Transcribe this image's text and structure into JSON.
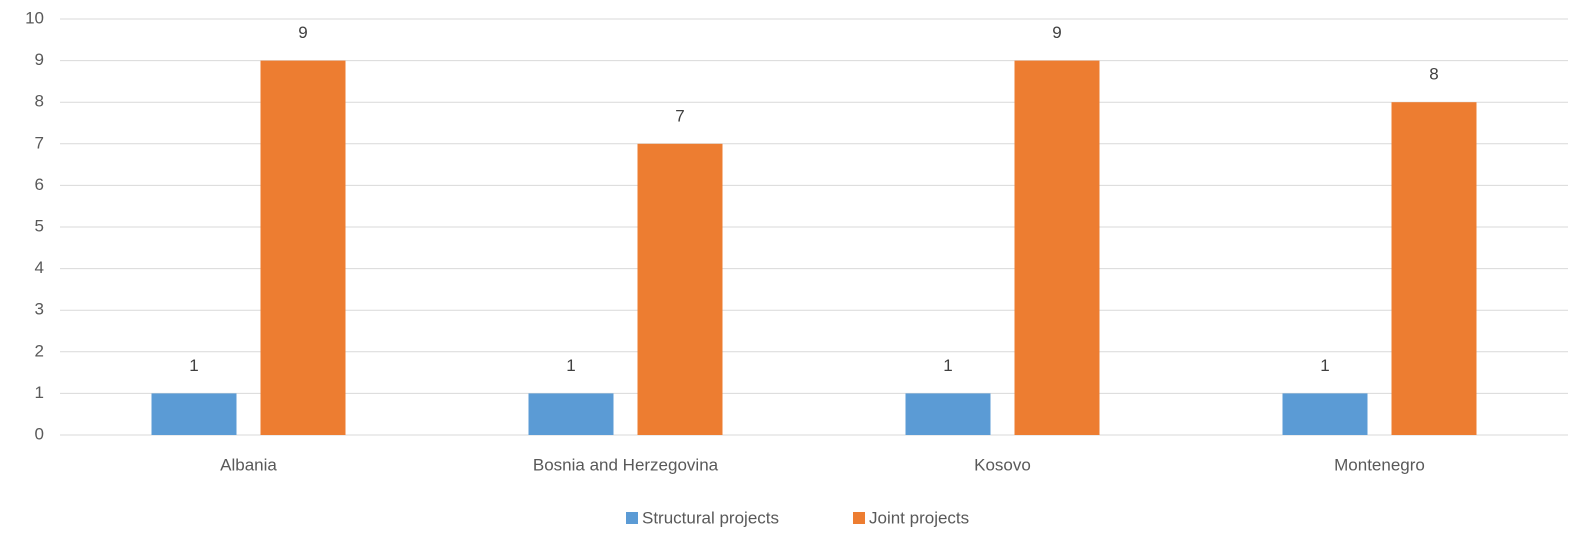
{
  "chart_data": {
    "type": "bar",
    "categories": [
      "Albania",
      "Bosnia and Herzegovina",
      "Kosovo",
      "Montenegro"
    ],
    "series": [
      {
        "name": "Structural projects",
        "color": "#5b9bd5",
        "values": [
          1,
          1,
          1,
          1
        ]
      },
      {
        "name": "Joint projects",
        "color": "#ed7d31",
        "values": [
          9,
          7,
          9,
          8
        ]
      }
    ],
    "ylim": [
      0,
      10
    ],
    "yticks": [
      0,
      1,
      2,
      3,
      4,
      5,
      6,
      7,
      8,
      9,
      10
    ],
    "grid": true,
    "legend": "bottom"
  }
}
